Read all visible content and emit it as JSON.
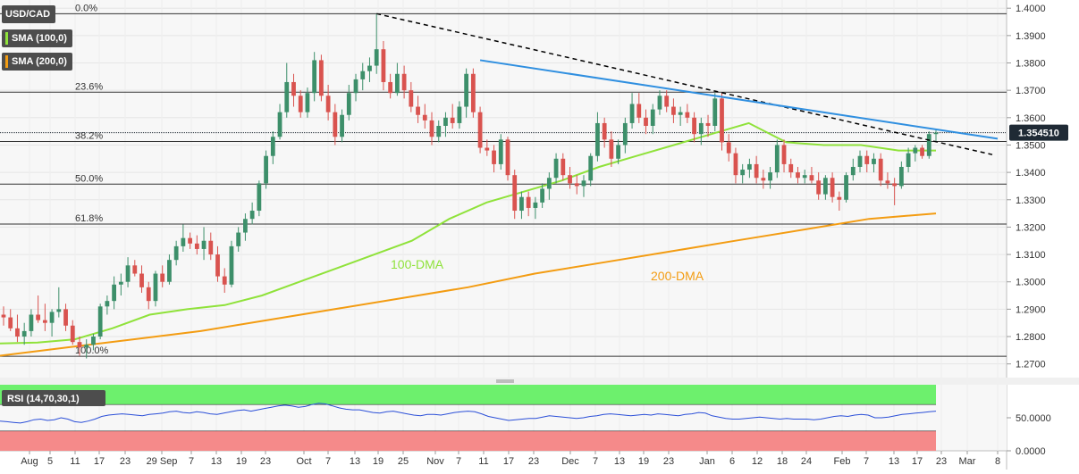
{
  "chart_data": [
    {
      "type": "candlestick",
      "symbol": "USD/CAD",
      "indicators": [
        "SMA (100,0)",
        "SMA (200,0)"
      ],
      "colors": {
        "up": "#3d8f6a",
        "down": "#d9534f",
        "sma100": "#8fe23a",
        "sma200": "#f39c12",
        "trendline_blue": "#2f8fe0",
        "trendline_dashed": "#000000",
        "price_tag": "#1f2a35",
        "ohlc_badge": "#4d4d4d"
      },
      "ylim": [
        1.265,
        1.403
      ],
      "y_ticks": [
        "1.4000",
        "1.3900",
        "1.3800",
        "1.3700",
        "1.3600",
        "1.3500",
        "1.3400",
        "1.3300",
        "1.3200",
        "1.3100",
        "1.3000",
        "1.2900",
        "1.2800",
        "1.2700"
      ],
      "x_ticks": [
        "Aug",
        "5",
        "11",
        "17",
        "23",
        "29 Sep",
        "7",
        "13",
        "19",
        "23",
        "Oct",
        "7",
        "13",
        "19",
        "25",
        "Nov",
        "7",
        "11",
        "17",
        "23",
        "Dec",
        "7",
        "13",
        "19",
        "23",
        "Jan",
        "6",
        "12",
        "18",
        "24",
        "Feb",
        "7",
        "13",
        "17",
        "23",
        "Mar",
        "8"
      ],
      "current_price": "1.354510",
      "fibonacci": [
        {
          "label": "0.0%",
          "value": 1.398
        },
        {
          "label": "23.6%",
          "value": 1.3693
        },
        {
          "label": "38.2%",
          "value": 1.3513
        },
        {
          "label": "50.0%",
          "value": 1.3357
        },
        {
          "label": "61.8%",
          "value": 1.3211
        },
        {
          "label": "100.0%",
          "value": 1.2728
        }
      ],
      "annotations": [
        "100-DMA",
        "200-DMA"
      ],
      "candles": [
        {
          "o": 1.288,
          "h": 1.291,
          "l": 1.284,
          "c": 1.287
        },
        {
          "o": 1.287,
          "h": 1.29,
          "l": 1.282,
          "c": 1.283
        },
        {
          "o": 1.283,
          "h": 1.288,
          "l": 1.278,
          "c": 1.28
        },
        {
          "o": 1.28,
          "h": 1.285,
          "l": 1.277,
          "c": 1.282
        },
        {
          "o": 1.282,
          "h": 1.29,
          "l": 1.28,
          "c": 1.288
        },
        {
          "o": 1.288,
          "h": 1.295,
          "l": 1.285,
          "c": 1.286
        },
        {
          "o": 1.286,
          "h": 1.292,
          "l": 1.282,
          "c": 1.285
        },
        {
          "o": 1.285,
          "h": 1.29,
          "l": 1.28,
          "c": 1.289
        },
        {
          "o": 1.289,
          "h": 1.298,
          "l": 1.287,
          "c": 1.29
        },
        {
          "o": 1.29,
          "h": 1.292,
          "l": 1.282,
          "c": 1.284
        },
        {
          "o": 1.284,
          "h": 1.286,
          "l": 1.277,
          "c": 1.278
        },
        {
          "o": 1.278,
          "h": 1.28,
          "l": 1.273,
          "c": 1.276
        },
        {
          "o": 1.276,
          "h": 1.279,
          "l": 1.272,
          "c": 1.277
        },
        {
          "o": 1.277,
          "h": 1.281,
          "l": 1.275,
          "c": 1.28
        },
        {
          "o": 1.28,
          "h": 1.292,
          "l": 1.279,
          "c": 1.291
        },
        {
          "o": 1.291,
          "h": 1.295,
          "l": 1.288,
          "c": 1.293
        },
        {
          "o": 1.293,
          "h": 1.302,
          "l": 1.29,
          "c": 1.299
        },
        {
          "o": 1.299,
          "h": 1.303,
          "l": 1.295,
          "c": 1.3
        },
        {
          "o": 1.3,
          "h": 1.309,
          "l": 1.298,
          "c": 1.306
        },
        {
          "o": 1.306,
          "h": 1.308,
          "l": 1.302,
          "c": 1.303
        },
        {
          "o": 1.303,
          "h": 1.306,
          "l": 1.296,
          "c": 1.298
        },
        {
          "o": 1.298,
          "h": 1.3,
          "l": 1.29,
          "c": 1.293
        },
        {
          "o": 1.293,
          "h": 1.304,
          "l": 1.291,
          "c": 1.303
        },
        {
          "o": 1.303,
          "h": 1.306,
          "l": 1.298,
          "c": 1.3
        },
        {
          "o": 1.3,
          "h": 1.31,
          "l": 1.299,
          "c": 1.308
        },
        {
          "o": 1.308,
          "h": 1.315,
          "l": 1.306,
          "c": 1.313
        },
        {
          "o": 1.313,
          "h": 1.321,
          "l": 1.311,
          "c": 1.316
        },
        {
          "o": 1.316,
          "h": 1.318,
          "l": 1.312,
          "c": 1.314
        },
        {
          "o": 1.314,
          "h": 1.317,
          "l": 1.31,
          "c": 1.312
        },
        {
          "o": 1.312,
          "h": 1.32,
          "l": 1.308,
          "c": 1.315
        },
        {
          "o": 1.315,
          "h": 1.318,
          "l": 1.308,
          "c": 1.31
        },
        {
          "o": 1.31,
          "h": 1.313,
          "l": 1.3,
          "c": 1.302
        },
        {
          "o": 1.302,
          "h": 1.305,
          "l": 1.296,
          "c": 1.299
        },
        {
          "o": 1.299,
          "h": 1.315,
          "l": 1.298,
          "c": 1.313
        },
        {
          "o": 1.313,
          "h": 1.32,
          "l": 1.311,
          "c": 1.318
        },
        {
          "o": 1.318,
          "h": 1.325,
          "l": 1.315,
          "c": 1.323
        },
        {
          "o": 1.323,
          "h": 1.329,
          "l": 1.321,
          "c": 1.326
        },
        {
          "o": 1.326,
          "h": 1.337,
          "l": 1.324,
          "c": 1.336
        },
        {
          "o": 1.336,
          "h": 1.348,
          "l": 1.334,
          "c": 1.346
        },
        {
          "o": 1.346,
          "h": 1.355,
          "l": 1.343,
          "c": 1.353
        },
        {
          "o": 1.353,
          "h": 1.365,
          "l": 1.352,
          "c": 1.362
        },
        {
          "o": 1.362,
          "h": 1.38,
          "l": 1.36,
          "c": 1.373
        },
        {
          "o": 1.373,
          "h": 1.376,
          "l": 1.364,
          "c": 1.368
        },
        {
          "o": 1.368,
          "h": 1.37,
          "l": 1.36,
          "c": 1.362
        },
        {
          "o": 1.362,
          "h": 1.371,
          "l": 1.36,
          "c": 1.369
        },
        {
          "o": 1.369,
          "h": 1.384,
          "l": 1.366,
          "c": 1.381
        },
        {
          "o": 1.381,
          "h": 1.383,
          "l": 1.366,
          "c": 1.368
        },
        {
          "o": 1.368,
          "h": 1.372,
          "l": 1.359,
          "c": 1.362
        },
        {
          "o": 1.362,
          "h": 1.365,
          "l": 1.35,
          "c": 1.353
        },
        {
          "o": 1.353,
          "h": 1.363,
          "l": 1.351,
          "c": 1.361
        },
        {
          "o": 1.361,
          "h": 1.372,
          "l": 1.359,
          "c": 1.369
        },
        {
          "o": 1.369,
          "h": 1.376,
          "l": 1.366,
          "c": 1.374
        },
        {
          "o": 1.374,
          "h": 1.38,
          "l": 1.37,
          "c": 1.377
        },
        {
          "o": 1.377,
          "h": 1.382,
          "l": 1.373,
          "c": 1.379
        },
        {
          "o": 1.379,
          "h": 1.398,
          "l": 1.376,
          "c": 1.385
        },
        {
          "o": 1.385,
          "h": 1.388,
          "l": 1.37,
          "c": 1.373
        },
        {
          "o": 1.373,
          "h": 1.376,
          "l": 1.367,
          "c": 1.369
        },
        {
          "o": 1.369,
          "h": 1.38,
          "l": 1.368,
          "c": 1.376
        },
        {
          "o": 1.376,
          "h": 1.379,
          "l": 1.367,
          "c": 1.37
        },
        {
          "o": 1.37,
          "h": 1.373,
          "l": 1.362,
          "c": 1.364
        },
        {
          "o": 1.364,
          "h": 1.368,
          "l": 1.358,
          "c": 1.361
        },
        {
          "o": 1.361,
          "h": 1.365,
          "l": 1.356,
          "c": 1.359
        },
        {
          "o": 1.359,
          "h": 1.362,
          "l": 1.35,
          "c": 1.353
        },
        {
          "o": 1.353,
          "h": 1.359,
          "l": 1.351,
          "c": 1.357
        },
        {
          "o": 1.357,
          "h": 1.362,
          "l": 1.353,
          "c": 1.36
        },
        {
          "o": 1.36,
          "h": 1.365,
          "l": 1.356,
          "c": 1.358
        },
        {
          "o": 1.358,
          "h": 1.366,
          "l": 1.356,
          "c": 1.364
        },
        {
          "o": 1.364,
          "h": 1.378,
          "l": 1.36,
          "c": 1.376
        },
        {
          "o": 1.376,
          "h": 1.378,
          "l": 1.36,
          "c": 1.362
        },
        {
          "o": 1.362,
          "h": 1.364,
          "l": 1.347,
          "c": 1.349
        },
        {
          "o": 1.349,
          "h": 1.352,
          "l": 1.346,
          "c": 1.348
        },
        {
          "o": 1.348,
          "h": 1.35,
          "l": 1.34,
          "c": 1.343
        },
        {
          "o": 1.343,
          "h": 1.354,
          "l": 1.341,
          "c": 1.352
        },
        {
          "o": 1.352,
          "h": 1.353,
          "l": 1.337,
          "c": 1.339
        },
        {
          "o": 1.339,
          "h": 1.341,
          "l": 1.323,
          "c": 1.326
        },
        {
          "o": 1.326,
          "h": 1.333,
          "l": 1.323,
          "c": 1.331
        },
        {
          "o": 1.331,
          "h": 1.333,
          "l": 1.324,
          "c": 1.327
        },
        {
          "o": 1.327,
          "h": 1.331,
          "l": 1.323,
          "c": 1.329
        },
        {
          "o": 1.329,
          "h": 1.336,
          "l": 1.327,
          "c": 1.334
        },
        {
          "o": 1.334,
          "h": 1.34,
          "l": 1.33,
          "c": 1.338
        },
        {
          "o": 1.338,
          "h": 1.347,
          "l": 1.336,
          "c": 1.345
        },
        {
          "o": 1.345,
          "h": 1.347,
          "l": 1.337,
          "c": 1.339
        },
        {
          "o": 1.339,
          "h": 1.342,
          "l": 1.334,
          "c": 1.336
        },
        {
          "o": 1.336,
          "h": 1.339,
          "l": 1.332,
          "c": 1.335
        },
        {
          "o": 1.335,
          "h": 1.339,
          "l": 1.331,
          "c": 1.337
        },
        {
          "o": 1.337,
          "h": 1.347,
          "l": 1.335,
          "c": 1.346
        },
        {
          "o": 1.346,
          "h": 1.362,
          "l": 1.344,
          "c": 1.358
        },
        {
          "o": 1.358,
          "h": 1.36,
          "l": 1.349,
          "c": 1.352
        },
        {
          "o": 1.352,
          "h": 1.355,
          "l": 1.342,
          "c": 1.345
        },
        {
          "o": 1.345,
          "h": 1.352,
          "l": 1.343,
          "c": 1.35
        },
        {
          "o": 1.35,
          "h": 1.36,
          "l": 1.347,
          "c": 1.358
        },
        {
          "o": 1.358,
          "h": 1.369,
          "l": 1.356,
          "c": 1.365
        },
        {
          "o": 1.365,
          "h": 1.369,
          "l": 1.358,
          "c": 1.36
        },
        {
          "o": 1.36,
          "h": 1.363,
          "l": 1.354,
          "c": 1.357
        },
        {
          "o": 1.357,
          "h": 1.365,
          "l": 1.354,
          "c": 1.363
        },
        {
          "o": 1.363,
          "h": 1.37,
          "l": 1.361,
          "c": 1.368
        },
        {
          "o": 1.368,
          "h": 1.37,
          "l": 1.362,
          "c": 1.364
        },
        {
          "o": 1.364,
          "h": 1.367,
          "l": 1.358,
          "c": 1.361
        },
        {
          "o": 1.361,
          "h": 1.364,
          "l": 1.357,
          "c": 1.362
        },
        {
          "o": 1.362,
          "h": 1.365,
          "l": 1.358,
          "c": 1.36
        },
        {
          "o": 1.36,
          "h": 1.362,
          "l": 1.351,
          "c": 1.354
        },
        {
          "o": 1.354,
          "h": 1.36,
          "l": 1.35,
          "c": 1.358
        },
        {
          "o": 1.358,
          "h": 1.361,
          "l": 1.353,
          "c": 1.357
        },
        {
          "o": 1.357,
          "h": 1.369,
          "l": 1.355,
          "c": 1.367
        },
        {
          "o": 1.367,
          "h": 1.369,
          "l": 1.348,
          "c": 1.351
        },
        {
          "o": 1.351,
          "h": 1.354,
          "l": 1.344,
          "c": 1.347
        },
        {
          "o": 1.347,
          "h": 1.349,
          "l": 1.336,
          "c": 1.339
        },
        {
          "o": 1.339,
          "h": 1.343,
          "l": 1.336,
          "c": 1.341
        },
        {
          "o": 1.341,
          "h": 1.345,
          "l": 1.338,
          "c": 1.343
        },
        {
          "o": 1.343,
          "h": 1.346,
          "l": 1.336,
          "c": 1.338
        },
        {
          "o": 1.338,
          "h": 1.341,
          "l": 1.334,
          "c": 1.337
        },
        {
          "o": 1.337,
          "h": 1.342,
          "l": 1.334,
          "c": 1.34
        },
        {
          "o": 1.34,
          "h": 1.352,
          "l": 1.338,
          "c": 1.35
        },
        {
          "o": 1.35,
          "h": 1.352,
          "l": 1.34,
          "c": 1.343
        },
        {
          "o": 1.343,
          "h": 1.345,
          "l": 1.338,
          "c": 1.34
        },
        {
          "o": 1.34,
          "h": 1.342,
          "l": 1.336,
          "c": 1.338
        },
        {
          "o": 1.338,
          "h": 1.341,
          "l": 1.336,
          "c": 1.339
        },
        {
          "o": 1.339,
          "h": 1.342,
          "l": 1.336,
          "c": 1.337
        },
        {
          "o": 1.337,
          "h": 1.34,
          "l": 1.33,
          "c": 1.332
        },
        {
          "o": 1.332,
          "h": 1.339,
          "l": 1.33,
          "c": 1.338
        },
        {
          "o": 1.338,
          "h": 1.34,
          "l": 1.329,
          "c": 1.331
        },
        {
          "o": 1.331,
          "h": 1.333,
          "l": 1.326,
          "c": 1.33
        },
        {
          "o": 1.33,
          "h": 1.34,
          "l": 1.329,
          "c": 1.339
        },
        {
          "o": 1.339,
          "h": 1.345,
          "l": 1.337,
          "c": 1.342
        },
        {
          "o": 1.342,
          "h": 1.348,
          "l": 1.34,
          "c": 1.346
        },
        {
          "o": 1.346,
          "h": 1.348,
          "l": 1.34,
          "c": 1.343
        },
        {
          "o": 1.343,
          "h": 1.347,
          "l": 1.34,
          "c": 1.345
        },
        {
          "o": 1.345,
          "h": 1.347,
          "l": 1.335,
          "c": 1.337
        },
        {
          "o": 1.337,
          "h": 1.34,
          "l": 1.334,
          "c": 1.336
        },
        {
          "o": 1.336,
          "h": 1.338,
          "l": 1.328,
          "c": 1.335
        },
        {
          "o": 1.335,
          "h": 1.344,
          "l": 1.334,
          "c": 1.342
        },
        {
          "o": 1.342,
          "h": 1.349,
          "l": 1.34,
          "c": 1.347
        },
        {
          "o": 1.347,
          "h": 1.35,
          "l": 1.344,
          "c": 1.349
        },
        {
          "o": 1.349,
          "h": 1.35,
          "l": 1.345,
          "c": 1.346
        },
        {
          "o": 1.346,
          "h": 1.355,
          "l": 1.345,
          "c": 1.354
        },
        {
          "o": 1.354,
          "h": 1.356,
          "l": 1.351,
          "c": 1.3545
        }
      ],
      "sma100": [
        1.2775,
        1.2778,
        1.279,
        1.283,
        1.288,
        1.29,
        1.2915,
        1.295,
        1.3,
        1.305,
        1.31,
        1.315,
        1.323,
        1.329,
        1.333,
        1.337,
        1.342,
        1.346,
        1.35,
        1.354,
        1.358,
        1.351,
        1.35,
        1.35,
        1.348,
        1.348
      ],
      "sma200": [
        1.273,
        1.276,
        1.279,
        1.282,
        1.286,
        1.29,
        1.294,
        1.298,
        1.303,
        1.307,
        1.311,
        1.315,
        1.319,
        1.323,
        1.325
      ],
      "rsi": {
        "label": "RSI (14,70,30,1)",
        "ylim": [
          0,
          100
        ],
        "overbought": 70,
        "oversold": 30,
        "y_ticks": [
          "50.0000",
          "0.0000"
        ],
        "values": [
          45,
          44,
          43,
          42,
          44,
          47,
          48,
          46,
          47,
          50,
          48,
          44,
          43,
          45,
          48,
          52,
          54,
          55,
          56,
          55,
          54,
          53,
          55,
          56,
          57,
          59,
          60,
          58,
          57,
          59,
          58,
          56,
          55,
          57,
          59,
          61,
          62,
          60,
          62,
          64,
          66,
          68,
          69,
          68,
          66,
          67,
          70,
          72,
          71,
          68,
          65,
          63,
          62,
          62,
          60,
          58,
          57,
          59,
          60,
          58,
          56,
          54,
          53,
          55,
          55,
          54,
          56,
          58,
          59,
          60,
          59,
          56,
          52,
          50,
          48,
          46,
          47,
          48,
          49,
          49,
          51,
          53,
          52,
          51,
          50,
          49,
          50,
          52,
          53,
          55,
          56,
          55,
          54,
          53,
          54,
          55,
          54,
          56,
          55,
          54,
          53,
          55,
          56,
          58,
          57,
          53,
          51,
          49,
          48,
          48,
          49,
          50,
          51,
          50,
          49,
          48,
          49,
          48,
          48,
          48,
          47,
          48,
          50,
          52,
          53,
          52,
          54,
          55,
          54,
          50,
          50,
          51,
          53,
          55,
          56,
          57,
          58,
          59,
          60
        ]
      }
    }
  ]
}
